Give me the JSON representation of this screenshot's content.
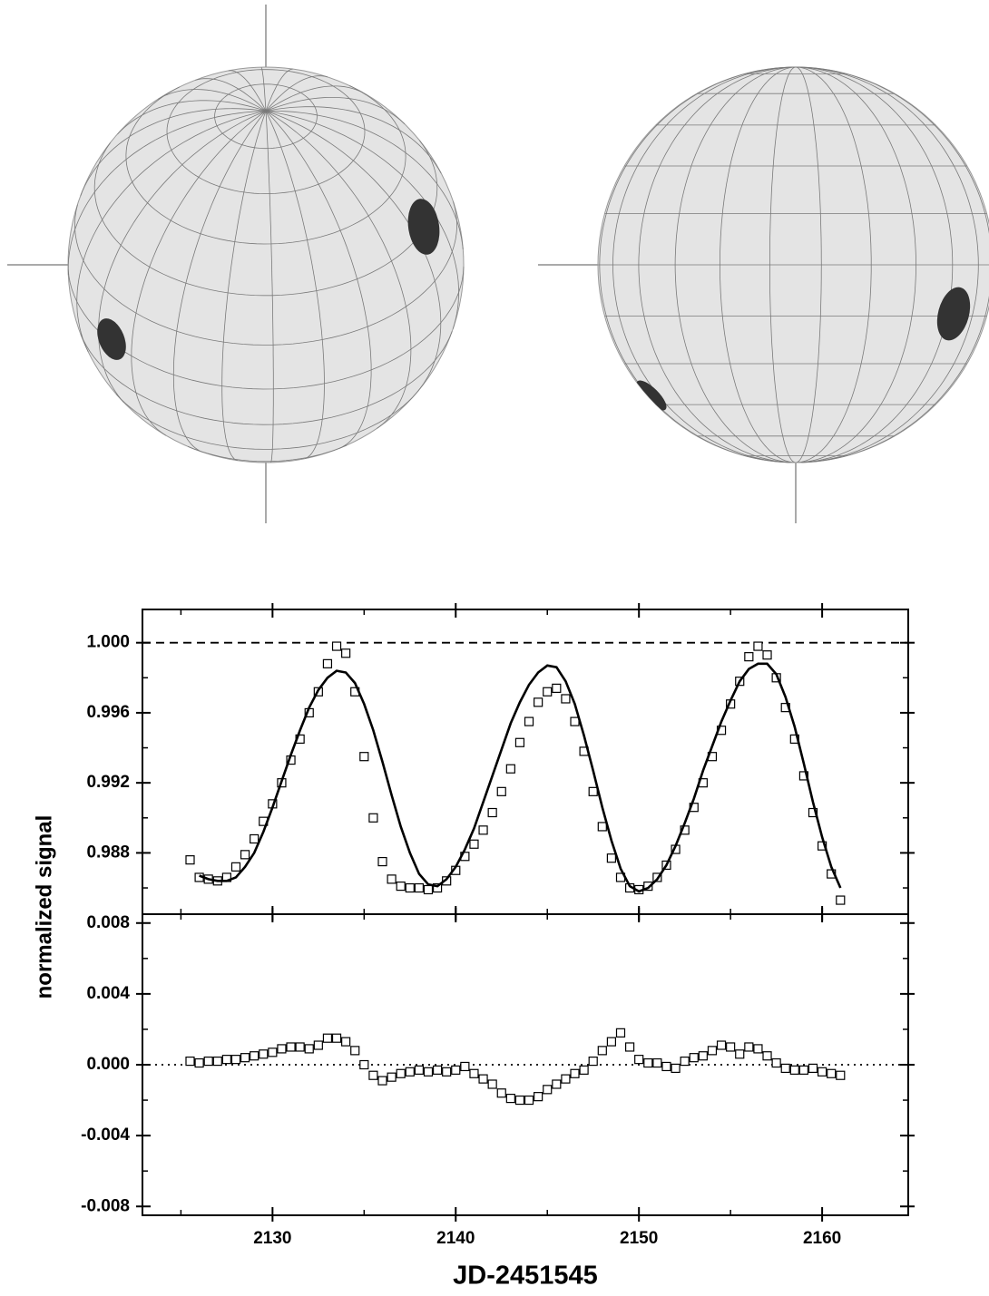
{
  "chart_data": [
    {
      "type": "scatter",
      "ylabel": "normalized signal",
      "xlim": [
        2122.9,
        2164.7
      ],
      "xticks": [
        2130,
        2140,
        2150,
        2160
      ],
      "xminorticks": [
        2125,
        2135,
        2145,
        2155
      ],
      "xtick_labels": false,
      "ylim": [
        0.9845,
        1.0019
      ],
      "yticks": [
        {
          "value": 1,
          "label": "1.000"
        },
        0.996,
        0.992,
        0.988
      ],
      "yminorticks": [
        0.998,
        0.994,
        0.99,
        0.986
      ],
      "reference_line": {
        "value": 1,
        "style": "dashed"
      },
      "series": [
        {
          "style": "markers",
          "color": "#000000",
          "x": [
            2125.5,
            2126,
            2126.5,
            2127,
            2127.5,
            2128,
            2128.5,
            2129,
            2129.5,
            2130,
            2130.5,
            2131,
            2131.5,
            2132,
            2132.5,
            2133,
            2133.5,
            2134,
            2134.5,
            2135,
            2135.5,
            2136,
            2136.5,
            2137,
            2137.5,
            2138,
            2138.5,
            2139,
            2139.5,
            2140,
            2140.5,
            2141,
            2141.5,
            2142,
            2142.5,
            2143,
            2143.5,
            2144,
            2144.5,
            2145,
            2145.5,
            2146,
            2146.5,
            2147,
            2147.5,
            2148,
            2148.5,
            2149,
            2149.5,
            2150,
            2150.5,
            2151,
            2151.5,
            2152,
            2152.5,
            2153,
            2153.5,
            2154,
            2154.5,
            2155,
            2155.5,
            2156,
            2156.5,
            2157,
            2157.5,
            2158,
            2158.5,
            2159,
            2159.5,
            2160,
            2160.5,
            2161
          ],
          "values": [
            0.9876,
            0.9866,
            0.9865,
            0.9864,
            0.9866,
            0.9872,
            0.9879,
            0.9888,
            0.9898,
            0.9908,
            0.992,
            0.9933,
            0.9945,
            0.996,
            0.9972,
            0.9988,
            0.9998,
            0.9994,
            0.9972,
            0.9935,
            0.99,
            0.9875,
            0.9865,
            0.9861,
            0.986,
            0.986,
            0.9859,
            0.986,
            0.9864,
            0.987,
            0.9878,
            0.9885,
            0.9893,
            0.9903,
            0.9915,
            0.9928,
            0.9943,
            0.9955,
            0.9966,
            0.9972,
            0.9974,
            0.9968,
            0.9955,
            0.9938,
            0.9915,
            0.9895,
            0.9877,
            0.9866,
            0.986,
            0.9859,
            0.9861,
            0.9866,
            0.9873,
            0.9882,
            0.9893,
            0.9906,
            0.992,
            0.9935,
            0.995,
            0.9965,
            0.9978,
            0.9992,
            0.9998,
            0.9993,
            0.998,
            0.9963,
            0.9945,
            0.9924,
            0.9903,
            0.9884,
            0.9868,
            0.9853
          ]
        },
        {
          "style": "line",
          "color": "#000000",
          "x": [
            2126,
            2126.5,
            2127,
            2127.5,
            2128,
            2128.5,
            2129,
            2129.5,
            2130,
            2130.5,
            2131,
            2131.5,
            2132,
            2132.5,
            2133,
            2133.5,
            2134,
            2134.5,
            2135,
            2135.5,
            2136,
            2136.5,
            2137,
            2137.5,
            2138,
            2138.5,
            2139,
            2139.5,
            2140,
            2140.5,
            2141,
            2141.5,
            2142,
            2142.5,
            2143,
            2143.5,
            2144,
            2144.5,
            2145,
            2145.5,
            2146,
            2146.5,
            2147,
            2147.5,
            2148,
            2148.5,
            2149,
            2149.5,
            2150,
            2150.5,
            2151,
            2151.5,
            2152,
            2152.5,
            2153,
            2153.5,
            2154,
            2154.5,
            2155,
            2155.5,
            2156,
            2156.5,
            2157,
            2157.5,
            2158,
            2158.5,
            2159,
            2159.5,
            2160,
            2160.5,
            2161
          ],
          "values": [
            0.9867,
            0.9865,
            0.9864,
            0.9864,
            0.9866,
            0.9872,
            0.988,
            0.9892,
            0.9906,
            0.9921,
            0.9936,
            0.995,
            0.9963,
            0.9973,
            0.998,
            0.9984,
            0.9983,
            0.9977,
            0.9965,
            0.995,
            0.9932,
            0.9913,
            0.9895,
            0.988,
            0.9868,
            0.9862,
            0.9861,
            0.9865,
            0.9872,
            0.9882,
            0.9894,
            0.9909,
            0.9924,
            0.9939,
            0.9954,
            0.9966,
            0.9976,
            0.9983,
            0.9987,
            0.9986,
            0.9978,
            0.9965,
            0.9947,
            0.9927,
            0.9906,
            0.9887,
            0.9871,
            0.9861,
            0.9858,
            0.986,
            0.9865,
            0.9873,
            0.9884,
            0.9897,
            0.9911,
            0.9927,
            0.9941,
            0.9955,
            0.9967,
            0.9978,
            0.9985,
            0.9988,
            0.9988,
            0.9982,
            0.9969,
            0.9952,
            0.9931,
            0.9909,
            0.9889,
            0.9872,
            0.986
          ]
        }
      ]
    },
    {
      "type": "scatter",
      "xlabel": "JD-2451545",
      "xlim": [
        2122.9,
        2164.7
      ],
      "xticks": [
        2130,
        2140,
        2150,
        2160
      ],
      "xminorticks": [
        2125,
        2135,
        2145,
        2155
      ],
      "ylim": [
        -0.0085,
        0.0085
      ],
      "yticks": [
        0.008,
        0.004,
        {
          "value": 0,
          "label": "0.000"
        },
        -0.004,
        -0.008
      ],
      "yminorticks": [
        0.006,
        0.002,
        -0.002,
        -0.006
      ],
      "reference_line": {
        "value": 0,
        "style": "dotted"
      },
      "series": [
        {
          "style": "markers",
          "color": "#000000",
          "x": [
            2125.5,
            2126,
            2126.5,
            2127,
            2127.5,
            2128,
            2128.5,
            2129,
            2129.5,
            2130,
            2130.5,
            2131,
            2131.5,
            2132,
            2132.5,
            2133,
            2133.5,
            2134,
            2134.5,
            2135,
            2135.5,
            2136,
            2136.5,
            2137,
            2137.5,
            2138,
            2138.5,
            2139,
            2139.5,
            2140,
            2140.5,
            2141,
            2141.5,
            2142,
            2142.5,
            2143,
            2143.5,
            2144,
            2144.5,
            2145,
            2145.5,
            2146,
            2146.5,
            2147,
            2147.5,
            2148,
            2148.5,
            2149,
            2149.5,
            2150,
            2150.5,
            2151,
            2151.5,
            2152,
            2152.5,
            2153,
            2153.5,
            2154,
            2154.5,
            2155,
            2155.5,
            2156,
            2156.5,
            2157,
            2157.5,
            2158,
            2158.5,
            2159,
            2159.5,
            2160,
            2160.5,
            2161
          ],
          "values": [
            0.0002,
            0.0001,
            0.0002,
            0.0002,
            0.0003,
            0.0003,
            0.0004,
            0.0005,
            0.0006,
            0.0007,
            0.0009,
            0.001,
            0.001,
            0.0009,
            0.0011,
            0.0015,
            0.0015,
            0.0013,
            0.0008,
            0,
            -0.0006,
            -0.0009,
            -0.0007,
            -0.0005,
            -0.0004,
            -0.0003,
            -0.0004,
            -0.0003,
            -0.0004,
            -0.0003,
            -0.0001,
            -0.0005,
            -0.0008,
            -0.0011,
            -0.0016,
            -0.0019,
            -0.002,
            -0.002,
            -0.0018,
            -0.0014,
            -0.0011,
            -0.0008,
            -0.0005,
            -0.0003,
            0.0002,
            0.0008,
            0.0013,
            0.0018,
            0.001,
            0.0003,
            0.0001,
            0.0001,
            -0.0001,
            -0.0002,
            0.0002,
            0.0004,
            0.0005,
            0.0008,
            0.0011,
            0.001,
            0.0006,
            0.001,
            0.0009,
            0.0005,
            0.0001,
            -0.0002,
            -0.0003,
            -0.0003,
            -0.0002,
            -0.0004,
            -0.0005,
            -0.0006
          ]
        }
      ]
    }
  ]
}
